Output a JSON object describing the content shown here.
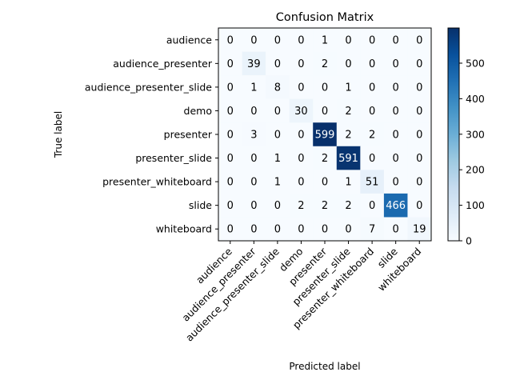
{
  "chart_data": {
    "type": "heatmap",
    "title": "Confusion Matrix",
    "xlabel": "Predicted label",
    "ylabel": "True label",
    "labels": [
      "audience",
      "audience_presenter",
      "audience_presenter_slide",
      "demo",
      "presenter",
      "presenter_slide",
      "presenter_whiteboard",
      "slide",
      "whiteboard"
    ],
    "matrix": [
      [
        0,
        0,
        0,
        0,
        1,
        0,
        0,
        0,
        0
      ],
      [
        0,
        39,
        0,
        0,
        2,
        0,
        0,
        0,
        0
      ],
      [
        0,
        1,
        8,
        0,
        0,
        1,
        0,
        0,
        0
      ],
      [
        0,
        0,
        0,
        30,
        0,
        2,
        0,
        0,
        0
      ],
      [
        0,
        3,
        0,
        0,
        599,
        2,
        2,
        0,
        0
      ],
      [
        0,
        0,
        1,
        0,
        2,
        591,
        0,
        0,
        0
      ],
      [
        0,
        0,
        1,
        0,
        0,
        1,
        51,
        0,
        0
      ],
      [
        0,
        0,
        0,
        2,
        2,
        2,
        0,
        466,
        0
      ],
      [
        0,
        0,
        0,
        0,
        0,
        0,
        7,
        0,
        19
      ]
    ],
    "colormap": "Blues",
    "colorbar": {
      "range": [
        0,
        599
      ],
      "ticks": [
        0,
        100,
        200,
        300,
        400,
        500
      ]
    },
    "grid": false
  }
}
